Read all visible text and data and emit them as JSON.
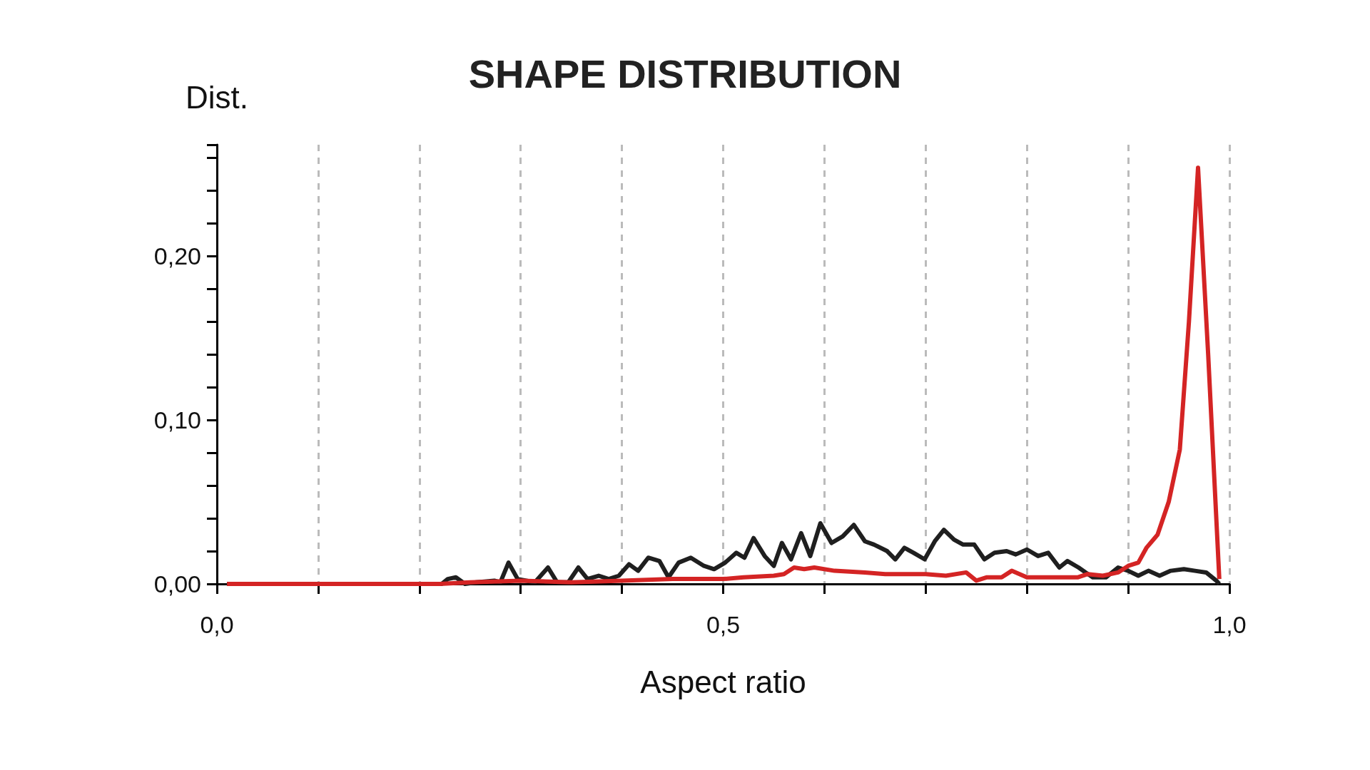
{
  "chart_data": {
    "type": "line",
    "title": "SHAPE DISTRIBUTION",
    "xlabel": "Aspect ratio",
    "ylabel": "Dist.",
    "xlim": [
      0,
      1
    ],
    "xticks": [
      {
        "value": 0,
        "label": "0,0"
      },
      {
        "value": 0.1,
        "label": null
      },
      {
        "value": 0.2,
        "label": null
      },
      {
        "value": 0.3,
        "label": null
      },
      {
        "value": 0.4,
        "label": null
      },
      {
        "value": 0.5,
        "label": "0,5"
      },
      {
        "value": 0.6,
        "label": null
      },
      {
        "value": 0.7,
        "label": null
      },
      {
        "value": 0.8,
        "label": null
      },
      {
        "value": 0.9,
        "label": null
      },
      {
        "value": 1,
        "label": "1,0"
      }
    ],
    "ylim": [
      0,
      0.268
    ],
    "yticks": [
      {
        "value": 0,
        "label": "0,00"
      },
      {
        "value": 0.02,
        "label": null
      },
      {
        "value": 0.04,
        "label": null
      },
      {
        "value": 0.06,
        "label": null
      },
      {
        "value": 0.08,
        "label": null
      },
      {
        "value": 0.1,
        "label": "0,10"
      },
      {
        "value": 0.12,
        "label": null
      },
      {
        "value": 0.14,
        "label": null
      },
      {
        "value": 0.16,
        "label": null
      },
      {
        "value": 0.18,
        "label": null
      },
      {
        "value": 0.2,
        "label": "0,20"
      },
      {
        "value": 0.22,
        "label": null
      },
      {
        "value": 0.24,
        "label": null
      },
      {
        "value": 0.26,
        "label": null
      }
    ],
    "grid": "x",
    "marker": "none",
    "line_style": "solid",
    "series": [
      {
        "color": "#1f1f1f",
        "x": [
          0.01,
          0.1,
          0.2,
          0.222,
          0.228,
          0.236,
          0.245,
          0.256,
          0.274,
          0.28,
          0.288,
          0.297,
          0.314,
          0.327,
          0.336,
          0.347,
          0.357,
          0.366,
          0.377,
          0.387,
          0.397,
          0.407,
          0.416,
          0.426,
          0.437,
          0.446,
          0.456,
          0.468,
          0.481,
          0.491,
          0.502,
          0.513,
          0.521,
          0.53,
          0.541,
          0.55,
          0.558,
          0.567,
          0.577,
          0.586,
          0.596,
          0.607,
          0.618,
          0.629,
          0.64,
          0.649,
          0.662,
          0.67,
          0.679,
          0.688,
          0.699,
          0.709,
          0.718,
          0.728,
          0.737,
          0.748,
          0.758,
          0.768,
          0.78,
          0.789,
          0.8,
          0.811,
          0.821,
          0.832,
          0.84,
          0.851,
          0.865,
          0.878,
          0.89,
          0.9,
          0.91,
          0.92,
          0.931,
          0.942,
          0.955,
          0.966,
          0.977,
          0.987,
          0.99
        ],
        "values": [
          0,
          0,
          0,
          0,
          0.003,
          0.004,
          0,
          0.001,
          0.002,
          0.001,
          0.013,
          0.003,
          0.001,
          0.01,
          0.001,
          0.001,
          0.01,
          0.003,
          0.005,
          0.003,
          0.005,
          0.012,
          0.008,
          0.016,
          0.014,
          0.004,
          0.013,
          0.016,
          0.011,
          0.009,
          0.013,
          0.019,
          0.016,
          0.028,
          0.017,
          0.011,
          0.025,
          0.015,
          0.031,
          0.017,
          0.037,
          0.025,
          0.029,
          0.036,
          0.026,
          0.024,
          0.02,
          0.015,
          0.022,
          0.019,
          0.015,
          0.026,
          0.033,
          0.027,
          0.024,
          0.024,
          0.015,
          0.019,
          0.02,
          0.018,
          0.021,
          0.017,
          0.019,
          0.01,
          0.014,
          0.01,
          0.004,
          0.004,
          0.01,
          0.008,
          0.005,
          0.008,
          0.005,
          0.008,
          0.009,
          0.008,
          0.007,
          0.002,
          0
        ]
      },
      {
        "color": "#d42424",
        "x": [
          0.01,
          0.1,
          0.2,
          0.22,
          0.25,
          0.3,
          0.35,
          0.4,
          0.45,
          0.5,
          0.52,
          0.55,
          0.56,
          0.57,
          0.58,
          0.59,
          0.61,
          0.64,
          0.66,
          0.7,
          0.72,
          0.74,
          0.75,
          0.76,
          0.775,
          0.785,
          0.8,
          0.83,
          0.85,
          0.86,
          0.875,
          0.89,
          0.9,
          0.91,
          0.918,
          0.929,
          0.94,
          0.951,
          0.96,
          0.969,
          0.979,
          0.99
        ],
        "values": [
          0,
          0,
          0,
          0,
          0.001,
          0.002,
          0.001,
          0.002,
          0.003,
          0.003,
          0.004,
          0.005,
          0.006,
          0.01,
          0.009,
          0.01,
          0.008,
          0.007,
          0.006,
          0.006,
          0.005,
          0.007,
          0.002,
          0.004,
          0.004,
          0.008,
          0.004,
          0.004,
          0.004,
          0.006,
          0.005,
          0.007,
          0.011,
          0.013,
          0.022,
          0.03,
          0.05,
          0.082,
          0.16,
          0.254,
          0.14,
          0.003
        ]
      }
    ]
  }
}
